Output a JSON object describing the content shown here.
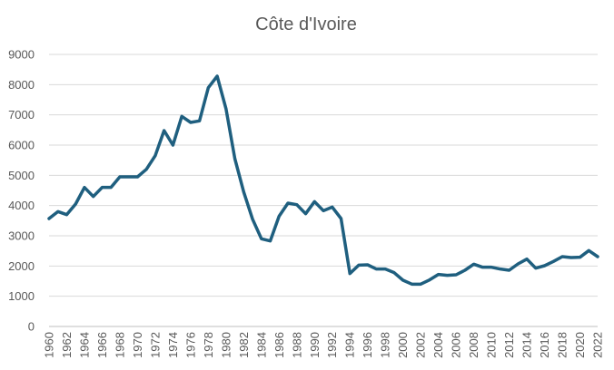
{
  "chart_data": {
    "type": "line",
    "title": "Côte d'Ivoire",
    "xlabel": "",
    "ylabel": "",
    "ylim": [
      0,
      9000
    ],
    "y_ticks": [
      0,
      1000,
      2000,
      3000,
      4000,
      5000,
      6000,
      7000,
      8000,
      9000
    ],
    "x_tick_labels": [
      "1960",
      "1962",
      "1964",
      "1966",
      "1968",
      "1970",
      "1972",
      "1974",
      "1976",
      "1978",
      "1980",
      "1982",
      "1984",
      "1986",
      "1988",
      "1990",
      "1992",
      "1994",
      "1996",
      "1998",
      "2000",
      "2002",
      "2004",
      "2006",
      "2008",
      "2010",
      "2012",
      "2014",
      "2016",
      "2018",
      "2020",
      "2022"
    ],
    "grid": true,
    "legend": "none",
    "line_color": "#1f5f7f",
    "x": [
      1960,
      1961,
      1962,
      1963,
      1964,
      1965,
      1966,
      1967,
      1968,
      1969,
      1970,
      1971,
      1972,
      1973,
      1974,
      1975,
      1976,
      1977,
      1978,
      1979,
      1980,
      1981,
      1982,
      1983,
      1984,
      1985,
      1986,
      1987,
      1988,
      1989,
      1990,
      1991,
      1992,
      1993,
      1994,
      1995,
      1996,
      1997,
      1998,
      1999,
      2000,
      2001,
      2002,
      2003,
      2004,
      2005,
      2006,
      2007,
      2008,
      2009,
      2010,
      2011,
      2012,
      2013,
      2014,
      2015,
      2016,
      2017,
      2018,
      2019,
      2020,
      2021,
      2022
    ],
    "series": [
      {
        "values": [
          3570,
          3800,
          3700,
          4050,
          4600,
          4300,
          4600,
          4600,
          4950,
          4950,
          4950,
          5200,
          5650,
          6480,
          6000,
          6950,
          6750,
          6800,
          7900,
          8280,
          7200,
          5550,
          4450,
          3550,
          2900,
          2830,
          3650,
          4080,
          4030,
          3730,
          4130,
          3830,
          3950,
          3570,
          1750,
          2030,
          2040,
          1900,
          1900,
          1780,
          1530,
          1400,
          1400,
          1540,
          1720,
          1690,
          1710,
          1860,
          2060,
          1960,
          1960,
          1900,
          1860,
          2070,
          2230,
          1930,
          2010,
          2150,
          2310,
          2280,
          2290,
          2510,
          2310
        ]
      }
    ]
  }
}
